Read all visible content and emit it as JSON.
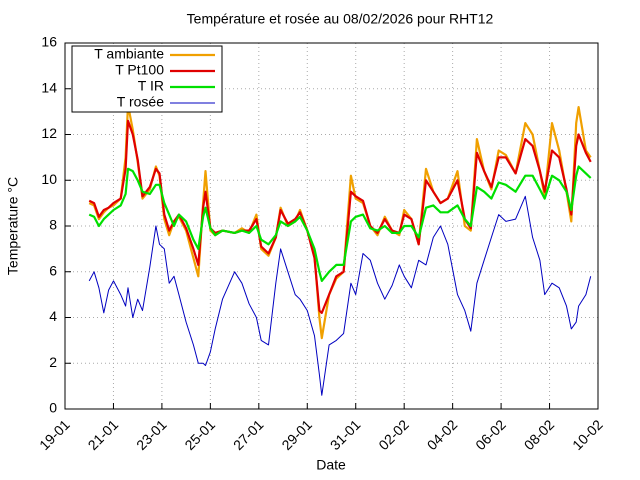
{
  "chart_data": {
    "type": "line",
    "title": "Température et rosée au 08/02/2026 pour RHT12",
    "x_label": "Date",
    "y_label": "Temperature °C",
    "x": [
      20.0,
      20.2,
      20.4,
      20.6,
      20.8,
      21.0,
      21.3,
      21.5,
      21.6,
      21.8,
      22.0,
      22.2,
      22.5,
      22.75,
      22.9,
      23.1,
      23.3,
      23.5,
      23.7,
      24.0,
      24.3,
      24.5,
      24.7,
      24.8,
      25.0,
      25.2,
      25.5,
      26.0,
      26.3,
      26.6,
      26.9,
      27.1,
      27.4,
      27.7,
      27.9,
      28.2,
      28.5,
      28.7,
      29.0,
      29.3,
      29.5,
      29.6,
      29.9,
      30.2,
      30.5,
      30.8,
      31.0,
      31.3,
      31.6,
      31.9,
      32.2,
      32.5,
      32.8,
      33.0,
      33.3,
      33.6,
      33.9,
      34.2,
      34.5,
      34.8,
      35.2,
      35.5,
      35.75,
      36.0,
      36.3,
      36.6,
      36.9,
      37.2,
      37.6,
      38.0,
      38.3,
      38.6,
      38.8,
      39.1,
      39.4,
      39.7,
      39.9,
      40.1,
      40.2,
      40.5,
      40.7
    ],
    "series": [
      {
        "name": "T ambiante",
        "color": "#f0a000",
        "values": [
          9.0,
          8.9,
          8.3,
          8.6,
          8.8,
          8.9,
          9.2,
          11.0,
          13.3,
          12.2,
          10.8,
          9.2,
          9.6,
          10.6,
          10.2,
          8.3,
          7.6,
          8.2,
          8.4,
          7.8,
          6.6,
          5.8,
          9.0,
          10.4,
          7.8,
          7.6,
          7.8,
          7.7,
          7.9,
          7.7,
          8.5,
          7.0,
          6.7,
          7.5,
          8.8,
          8.0,
          8.2,
          8.7,
          7.8,
          6.7,
          4.0,
          3.1,
          5.0,
          5.7,
          6.0,
          10.2,
          9.2,
          9.0,
          8.0,
          7.6,
          8.4,
          7.8,
          7.6,
          8.7,
          8.3,
          7.2,
          10.5,
          9.5,
          9.0,
          9.2,
          10.4,
          8.0,
          7.8,
          11.8,
          10.4,
          9.6,
          11.3,
          11.1,
          10.3,
          12.5,
          12.0,
          10.4,
          9.3,
          12.5,
          11.3,
          9.5,
          8.2,
          12.5,
          13.2,
          11.3,
          11.0
        ]
      },
      {
        "name": "T Pt100",
        "color": "#e00000",
        "values": [
          9.1,
          9.0,
          8.4,
          8.7,
          8.8,
          9.0,
          9.2,
          10.5,
          12.6,
          12.0,
          10.9,
          9.3,
          9.7,
          10.5,
          10.3,
          8.5,
          7.8,
          8.2,
          8.5,
          7.9,
          7.0,
          6.3,
          8.8,
          9.5,
          7.9,
          7.7,
          7.8,
          7.7,
          7.8,
          7.8,
          8.3,
          7.1,
          6.8,
          7.5,
          8.7,
          8.1,
          8.3,
          8.6,
          7.8,
          6.6,
          4.3,
          4.2,
          5.0,
          5.8,
          6.0,
          9.5,
          9.3,
          9.1,
          8.0,
          7.7,
          8.3,
          7.8,
          7.7,
          8.5,
          8.3,
          7.2,
          10.0,
          9.5,
          9.0,
          9.2,
          10.0,
          8.3,
          7.9,
          11.2,
          10.4,
          9.7,
          11.0,
          11.0,
          10.3,
          11.8,
          11.5,
          10.4,
          9.5,
          11.3,
          11.0,
          9.6,
          8.5,
          11.5,
          12.0,
          11.2,
          10.8
        ]
      },
      {
        "name": "T IR",
        "color": "#00e000",
        "values": [
          8.5,
          8.4,
          8.0,
          8.3,
          8.5,
          8.7,
          8.9,
          9.4,
          10.5,
          10.4,
          10.0,
          9.5,
          9.4,
          9.8,
          9.8,
          9.0,
          8.5,
          8.0,
          8.5,
          8.2,
          7.4,
          7.0,
          8.4,
          8.8,
          7.9,
          7.6,
          7.8,
          7.7,
          7.8,
          7.7,
          8.0,
          7.4,
          7.2,
          7.6,
          8.2,
          8.0,
          8.2,
          8.4,
          7.8,
          7.0,
          6.0,
          5.6,
          6.0,
          6.3,
          6.3,
          8.2,
          8.4,
          8.5,
          7.9,
          7.8,
          8.0,
          7.7,
          7.7,
          8.0,
          8.0,
          7.5,
          8.8,
          8.9,
          8.6,
          8.6,
          8.9,
          8.3,
          8.0,
          9.7,
          9.5,
          9.2,
          9.9,
          9.8,
          9.5,
          10.2,
          10.2,
          9.6,
          9.2,
          10.2,
          10.0,
          9.5,
          8.7,
          10.2,
          10.6,
          10.3,
          10.1
        ]
      },
      {
        "name": "T rosée",
        "color": "#0000c0",
        "values": [
          5.6,
          6.0,
          5.3,
          4.2,
          5.2,
          5.6,
          5.0,
          4.5,
          5.3,
          4.0,
          4.8,
          4.3,
          6.2,
          8.0,
          7.2,
          7.0,
          5.5,
          5.8,
          5.0,
          3.8,
          2.8,
          2.0,
          2.0,
          1.9,
          2.5,
          3.5,
          4.8,
          6.0,
          5.5,
          4.6,
          4.0,
          3.0,
          2.8,
          5.5,
          7.0,
          6.0,
          5.0,
          4.8,
          4.3,
          3.2,
          1.5,
          0.6,
          2.8,
          3.0,
          3.3,
          5.5,
          5.0,
          6.8,
          6.5,
          5.5,
          4.8,
          5.4,
          6.3,
          5.8,
          5.3,
          6.5,
          6.3,
          7.5,
          8.0,
          7.2,
          5.0,
          4.3,
          3.4,
          5.5,
          6.5,
          7.5,
          8.5,
          8.2,
          8.3,
          9.3,
          7.5,
          6.5,
          5.0,
          5.5,
          5.3,
          4.5,
          3.5,
          3.8,
          4.5,
          5.0,
          5.8
        ]
      }
    ],
    "xlim": [
      19,
      41
    ],
    "xticks": [
      {
        "value": 19,
        "label": "19-01"
      },
      {
        "value": 21,
        "label": "21-01"
      },
      {
        "value": 23,
        "label": "23-01"
      },
      {
        "value": 25,
        "label": "25-01"
      },
      {
        "value": 27,
        "label": "27-01"
      },
      {
        "value": 29,
        "label": "29-01"
      },
      {
        "value": 31,
        "label": "31-01"
      },
      {
        "value": 33,
        "label": "02-02"
      },
      {
        "value": 35,
        "label": "04-02"
      },
      {
        "value": 37,
        "label": "06-02"
      },
      {
        "value": 39,
        "label": "08-02"
      },
      {
        "value": 41,
        "label": "10-02"
      }
    ],
    "ylim": [
      0,
      16
    ],
    "yticks": [
      0,
      2,
      4,
      6,
      8,
      10,
      12,
      14,
      16
    ],
    "grid": true,
    "legend": "top-left"
  }
}
